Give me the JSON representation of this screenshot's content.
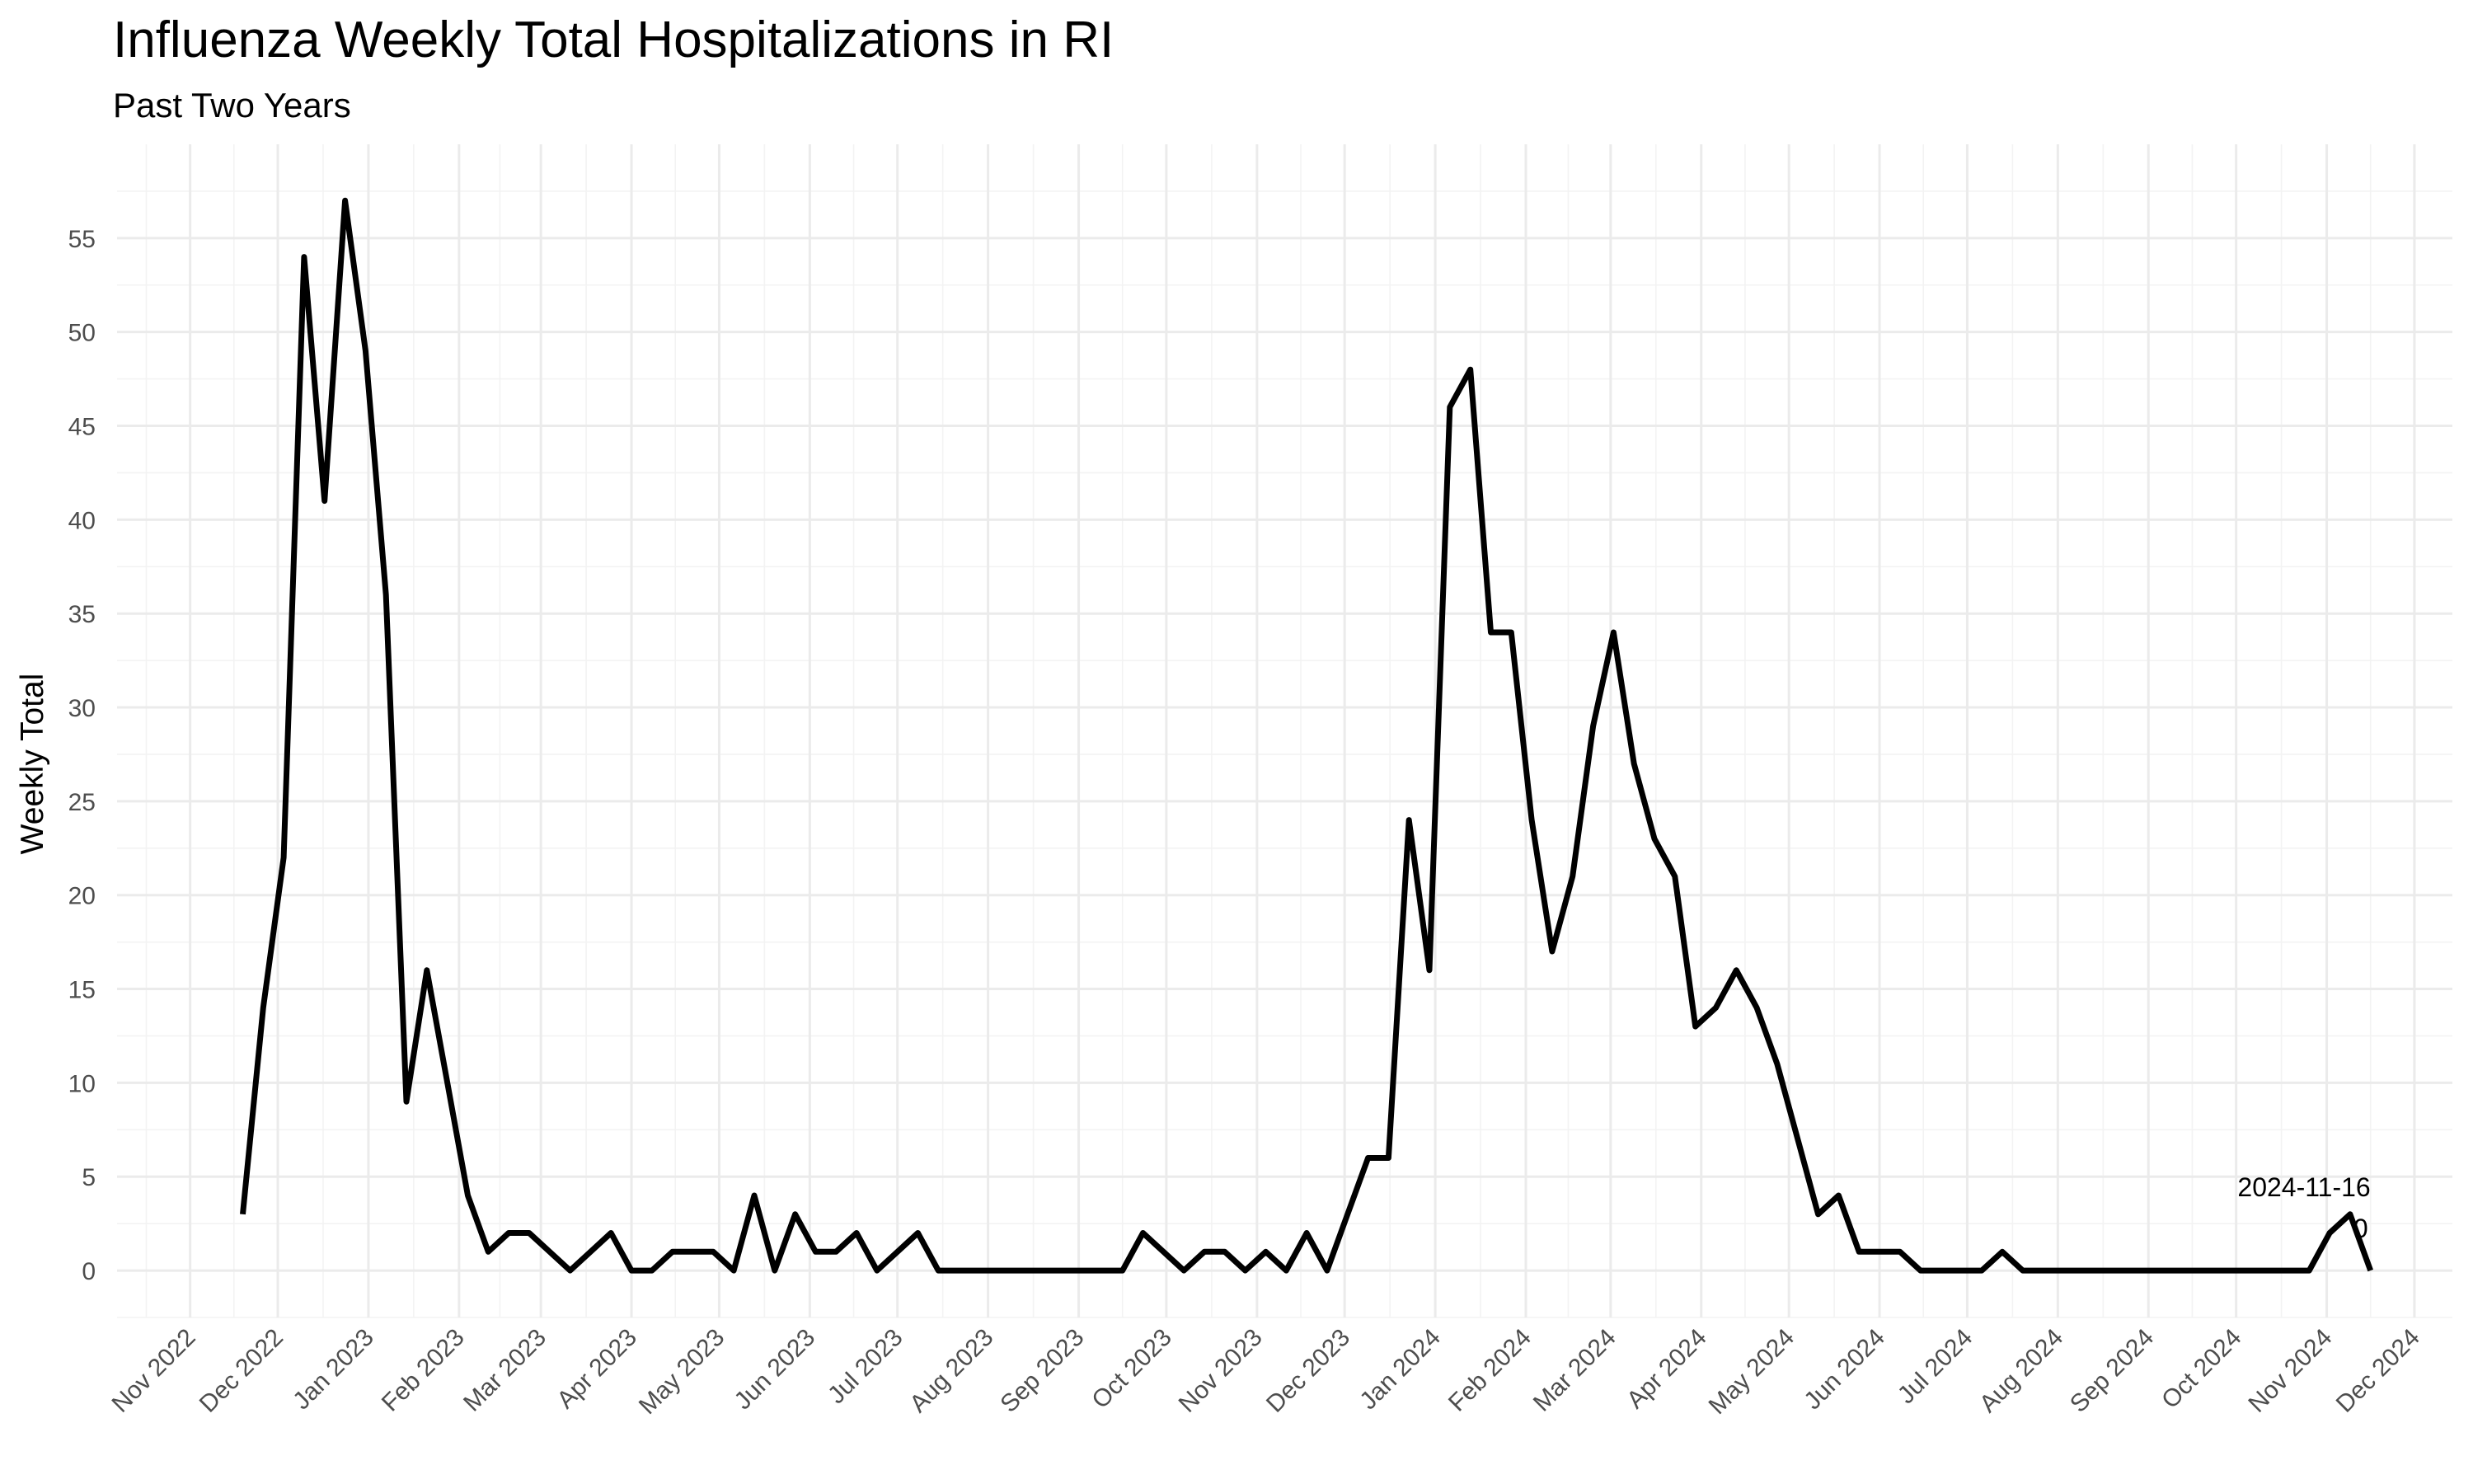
{
  "chart_data": {
    "type": "line",
    "title": "Influenza Weekly Total Hospitalizations in RI",
    "subtitle": "Past Two Years",
    "xlabel": "",
    "ylabel": "Weekly Total",
    "xlim": [
      "2022-10-07",
      "2024-12-14"
    ],
    "ylim": [
      -2.5,
      60
    ],
    "grid": true,
    "legend": "none",
    "line_color": "#000000",
    "y_ticks": [
      0,
      5,
      10,
      15,
      20,
      25,
      30,
      35,
      40,
      45,
      50,
      55
    ],
    "x_ticks": [
      {
        "date": "2022-11-01",
        "label": "Nov 2022"
      },
      {
        "date": "2022-12-01",
        "label": "Dec 2022"
      },
      {
        "date": "2023-01-01",
        "label": "Jan 2023"
      },
      {
        "date": "2023-02-01",
        "label": "Feb 2023"
      },
      {
        "date": "2023-03-01",
        "label": "Mar 2023"
      },
      {
        "date": "2023-04-01",
        "label": "Apr 2023"
      },
      {
        "date": "2023-05-01",
        "label": "May 2023"
      },
      {
        "date": "2023-06-01",
        "label": "Jun 2023"
      },
      {
        "date": "2023-07-01",
        "label": "Jul 2023"
      },
      {
        "date": "2023-08-01",
        "label": "Aug 2023"
      },
      {
        "date": "2023-09-01",
        "label": "Sep 2023"
      },
      {
        "date": "2023-10-01",
        "label": "Oct 2023"
      },
      {
        "date": "2023-11-01",
        "label": "Nov 2023"
      },
      {
        "date": "2023-12-01",
        "label": "Dec 2023"
      },
      {
        "date": "2024-01-01",
        "label": "Jan 2024"
      },
      {
        "date": "2024-02-01",
        "label": "Feb 2024"
      },
      {
        "date": "2024-03-01",
        "label": "Mar 2024"
      },
      {
        "date": "2024-04-01",
        "label": "Apr 2024"
      },
      {
        "date": "2024-05-01",
        "label": "May 2024"
      },
      {
        "date": "2024-06-01",
        "label": "Jun 2024"
      },
      {
        "date": "2024-07-01",
        "label": "Jul 2024"
      },
      {
        "date": "2024-08-01",
        "label": "Aug 2024"
      },
      {
        "date": "2024-09-01",
        "label": "Sep 2024"
      },
      {
        "date": "2024-10-01",
        "label": "Oct 2024"
      },
      {
        "date": "2024-11-01",
        "label": "Nov 2024"
      },
      {
        "date": "2024-12-01",
        "label": "Dec 2024"
      }
    ],
    "series": [
      {
        "points": [
          {
            "x": "2022-11-19",
            "y": 3
          },
          {
            "x": "2022-11-26",
            "y": 14
          },
          {
            "x": "2022-12-03",
            "y": 22
          },
          {
            "x": "2022-12-10",
            "y": 54
          },
          {
            "x": "2022-12-17",
            "y": 41
          },
          {
            "x": "2022-12-24",
            "y": 57
          },
          {
            "x": "2022-12-31",
            "y": 49
          },
          {
            "x": "2023-01-07",
            "y": 36
          },
          {
            "x": "2023-01-14",
            "y": 9
          },
          {
            "x": "2023-01-21",
            "y": 16
          },
          {
            "x": "2023-01-28",
            "y": 10
          },
          {
            "x": "2023-02-04",
            "y": 4
          },
          {
            "x": "2023-02-11",
            "y": 1
          },
          {
            "x": "2023-02-18",
            "y": 2
          },
          {
            "x": "2023-02-25",
            "y": 2
          },
          {
            "x": "2023-03-04",
            "y": 1
          },
          {
            "x": "2023-03-11",
            "y": 0
          },
          {
            "x": "2023-03-18",
            "y": 1
          },
          {
            "x": "2023-03-25",
            "y": 2
          },
          {
            "x": "2023-04-01",
            "y": 0
          },
          {
            "x": "2023-04-08",
            "y": 0
          },
          {
            "x": "2023-04-15",
            "y": 1
          },
          {
            "x": "2023-04-22",
            "y": 1
          },
          {
            "x": "2023-04-29",
            "y": 1
          },
          {
            "x": "2023-05-06",
            "y": 0
          },
          {
            "x": "2023-05-13",
            "y": 4
          },
          {
            "x": "2023-05-20",
            "y": 0
          },
          {
            "x": "2023-05-27",
            "y": 3
          },
          {
            "x": "2023-06-03",
            "y": 1
          },
          {
            "x": "2023-06-10",
            "y": 1
          },
          {
            "x": "2023-06-17",
            "y": 2
          },
          {
            "x": "2023-06-24",
            "y": 0
          },
          {
            "x": "2023-07-01",
            "y": 1
          },
          {
            "x": "2023-07-08",
            "y": 2
          },
          {
            "x": "2023-07-15",
            "y": 0
          },
          {
            "x": "2023-07-22",
            "y": 0
          },
          {
            "x": "2023-07-29",
            "y": 0
          },
          {
            "x": "2023-08-05",
            "y": 0
          },
          {
            "x": "2023-08-12",
            "y": 0
          },
          {
            "x": "2023-08-19",
            "y": 0
          },
          {
            "x": "2023-08-26",
            "y": 0
          },
          {
            "x": "2023-09-02",
            "y": 0
          },
          {
            "x": "2023-09-09",
            "y": 0
          },
          {
            "x": "2023-09-16",
            "y": 0
          },
          {
            "x": "2023-09-23",
            "y": 2
          },
          {
            "x": "2023-09-30",
            "y": 1
          },
          {
            "x": "2023-10-07",
            "y": 0
          },
          {
            "x": "2023-10-14",
            "y": 1
          },
          {
            "x": "2023-10-21",
            "y": 1
          },
          {
            "x": "2023-10-28",
            "y": 0
          },
          {
            "x": "2023-11-04",
            "y": 1
          },
          {
            "x": "2023-11-11",
            "y": 0
          },
          {
            "x": "2023-11-18",
            "y": 2
          },
          {
            "x": "2023-11-25",
            "y": 0
          },
          {
            "x": "2023-12-02",
            "y": 3
          },
          {
            "x": "2023-12-09",
            "y": 6
          },
          {
            "x": "2023-12-16",
            "y": 6
          },
          {
            "x": "2023-12-23",
            "y": 24
          },
          {
            "x": "2023-12-30",
            "y": 16
          },
          {
            "x": "2024-01-06",
            "y": 46
          },
          {
            "x": "2024-01-13",
            "y": 48
          },
          {
            "x": "2024-01-20",
            "y": 34
          },
          {
            "x": "2024-01-27",
            "y": 34
          },
          {
            "x": "2024-02-03",
            "y": 24
          },
          {
            "x": "2024-02-10",
            "y": 17
          },
          {
            "x": "2024-02-17",
            "y": 21
          },
          {
            "x": "2024-02-24",
            "y": 29
          },
          {
            "x": "2024-03-02",
            "y": 34
          },
          {
            "x": "2024-03-09",
            "y": 27
          },
          {
            "x": "2024-03-16",
            "y": 23
          },
          {
            "x": "2024-03-23",
            "y": 21
          },
          {
            "x": "2024-03-30",
            "y": 13
          },
          {
            "x": "2024-04-06",
            "y": 14
          },
          {
            "x": "2024-04-13",
            "y": 16
          },
          {
            "x": "2024-04-20",
            "y": 14
          },
          {
            "x": "2024-04-27",
            "y": 11
          },
          {
            "x": "2024-05-04",
            "y": 7
          },
          {
            "x": "2024-05-11",
            "y": 3
          },
          {
            "x": "2024-05-18",
            "y": 4
          },
          {
            "x": "2024-05-25",
            "y": 1
          },
          {
            "x": "2024-06-01",
            "y": 1
          },
          {
            "x": "2024-06-08",
            "y": 1
          },
          {
            "x": "2024-06-15",
            "y": 0
          },
          {
            "x": "2024-06-22",
            "y": 0
          },
          {
            "x": "2024-06-29",
            "y": 0
          },
          {
            "x": "2024-07-06",
            "y": 0
          },
          {
            "x": "2024-07-13",
            "y": 1
          },
          {
            "x": "2024-07-20",
            "y": 0
          },
          {
            "x": "2024-07-27",
            "y": 0
          },
          {
            "x": "2024-08-03",
            "y": 0
          },
          {
            "x": "2024-08-10",
            "y": 0
          },
          {
            "x": "2024-08-17",
            "y": 0
          },
          {
            "x": "2024-08-24",
            "y": 0
          },
          {
            "x": "2024-08-31",
            "y": 0
          },
          {
            "x": "2024-09-07",
            "y": 0
          },
          {
            "x": "2024-09-14",
            "y": 0
          },
          {
            "x": "2024-09-21",
            "y": 0
          },
          {
            "x": "2024-09-28",
            "y": 0
          },
          {
            "x": "2024-10-05",
            "y": 0
          },
          {
            "x": "2024-10-12",
            "y": 0
          },
          {
            "x": "2024-10-19",
            "y": 0
          },
          {
            "x": "2024-10-26",
            "y": 0
          },
          {
            "x": "2024-11-02",
            "y": 2
          },
          {
            "x": "2024-11-09",
            "y": 3
          },
          {
            "x": "2024-11-16",
            "y": 0
          }
        ]
      }
    ],
    "annotations": [
      {
        "date_label": "2024-11-16",
        "value_label": "0",
        "x": "2024-11-16",
        "y": 0
      }
    ]
  }
}
